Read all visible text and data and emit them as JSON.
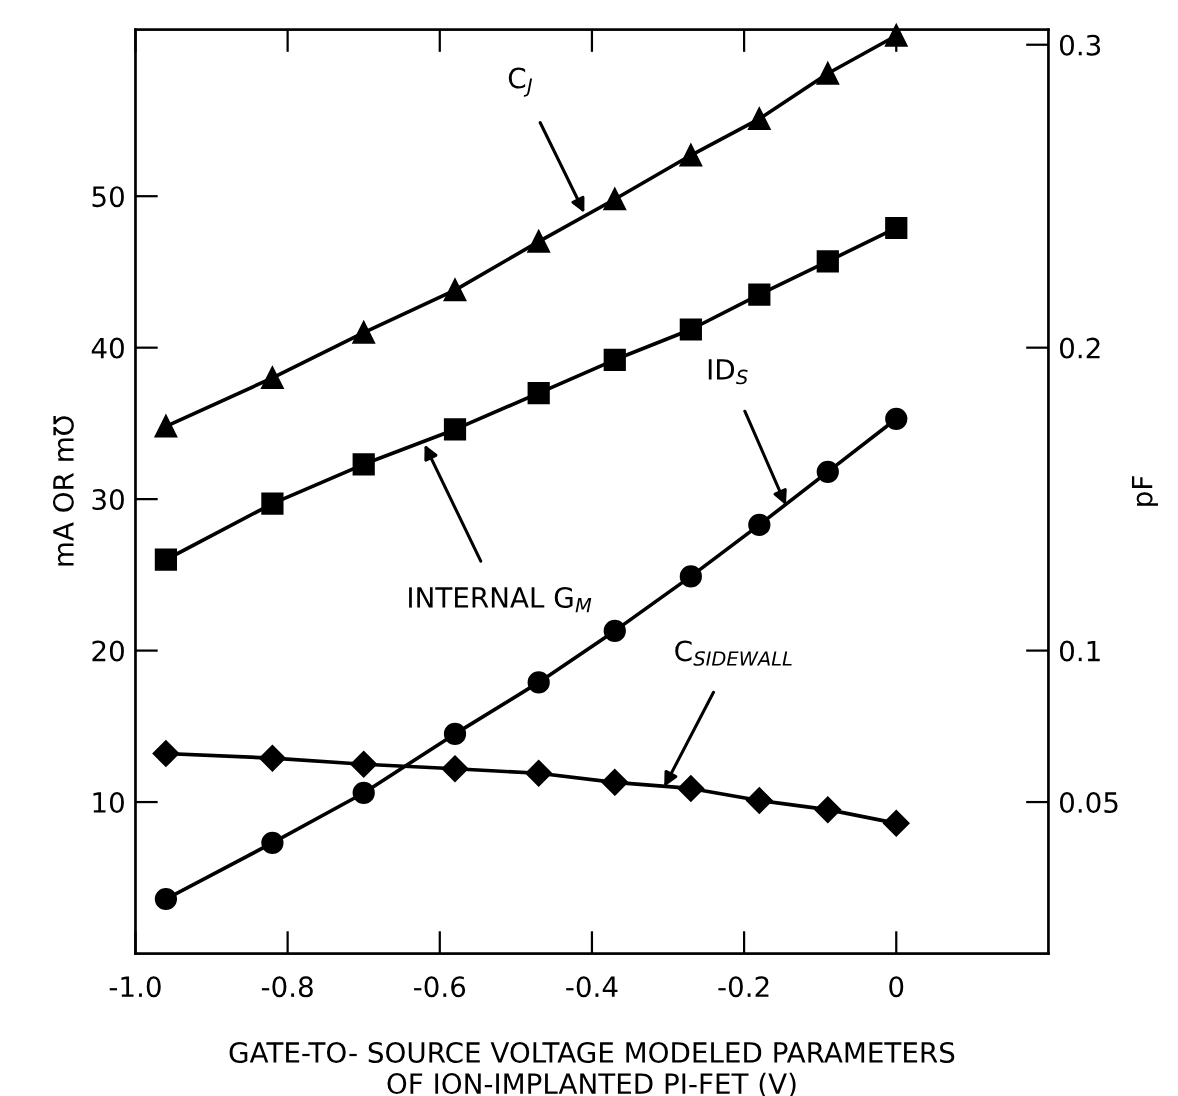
{
  "chart_data": {
    "type": "line",
    "xlabel": "GATE-TO- SOURCE VOLTAGE MODELED PARAMETERS\nOF ION-IMPLANTED PI-FET (V)",
    "ylabel": "mA OR m℧",
    "y2label": "pF",
    "x": [
      -0.96,
      -0.82,
      -0.7,
      -0.58,
      -0.47,
      -0.37,
      -0.27,
      -0.18,
      -0.09,
      0.0
    ],
    "series": [
      {
        "color": "#000000",
        "marker": "triangle",
        "values": [
          34.8,
          38.0,
          41.0,
          43.8,
          47.0,
          49.8,
          52.7,
          55.1,
          58.1,
          60.6
        ]
      },
      {
        "color": "#000000",
        "marker": "square",
        "values": [
          26.0,
          29.7,
          32.3,
          34.6,
          37.0,
          39.2,
          41.2,
          43.5,
          45.7,
          47.9
        ]
      },
      {
        "color": "#000000",
        "marker": "circle",
        "values": [
          3.6,
          7.3,
          10.6,
          14.5,
          17.9,
          21.3,
          24.9,
          28.3,
          31.8,
          35.3
        ]
      },
      {
        "color": "#000000",
        "marker": "diamond",
        "values": [
          13.2,
          12.9,
          12.5,
          12.2,
          11.9,
          11.3,
          10.9,
          10.1,
          9.5,
          8.6
        ]
      }
    ],
    "xlim": [
      -1.0,
      0.2
    ],
    "xticks": [
      {
        "value": -1.0,
        "label": "-1.0"
      },
      {
        "value": -0.8,
        "label": "-0.8"
      },
      {
        "value": -0.6,
        "label": "-0.6"
      },
      {
        "value": -0.4,
        "label": "-0.4"
      },
      {
        "value": -0.2,
        "label": "-0.2"
      },
      0
    ],
    "ylim": [
      0,
      61
    ],
    "yticks": [
      10,
      20,
      30,
      40,
      50
    ],
    "y2lim": [
      0,
      0.305
    ],
    "y2ticks": [
      0.05,
      0.1,
      0.2,
      0.3
    ],
    "annotations": [
      {
        "text": "C$_{J}$",
        "x": -0.41,
        "y": 48.9
      },
      {
        "text": "INTERNAL G$_{M}$",
        "x": -0.62,
        "y": 33.6
      },
      {
        "text": "ID$_{S}$",
        "x": -0.145,
        "y": 29.6
      },
      {
        "text": "C$_{SIDEWALL}$",
        "x": -0.305,
        "y": 11.0
      }
    ],
    "grid": false,
    "line_style": "solid",
    "legend": false
  }
}
